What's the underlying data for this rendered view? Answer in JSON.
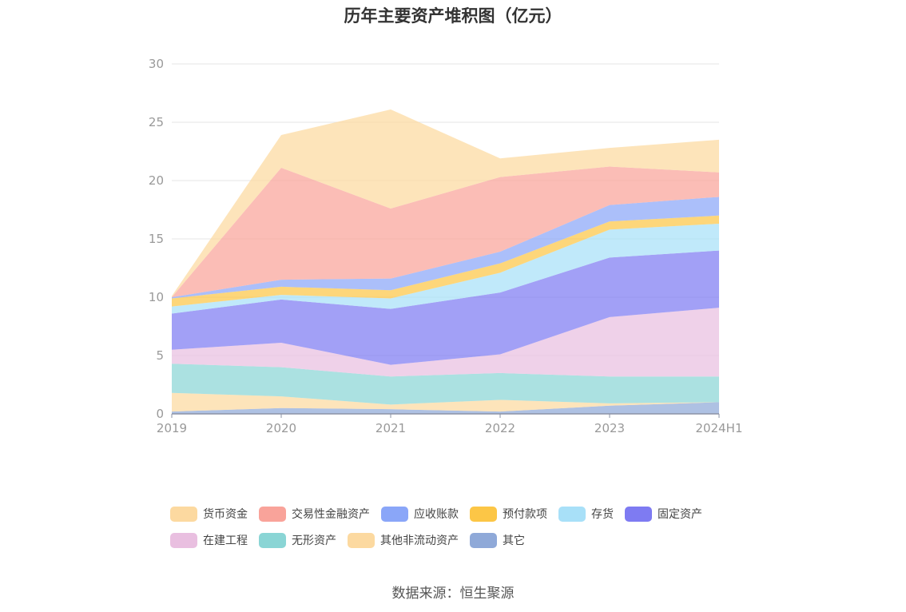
{
  "chart_data": {
    "type": "area",
    "stacked": true,
    "title": "历年主要资产堆积图（亿元）",
    "categories": [
      "2019",
      "2020",
      "2021",
      "2022",
      "2023",
      "2024H1"
    ],
    "ylim": [
      0,
      30
    ],
    "yticks": [
      0,
      5,
      10,
      15,
      20,
      25,
      30
    ],
    "grid": true,
    "legend_position": "bottom",
    "series": [
      {
        "name": "其它",
        "color": "#8fa9d8",
        "values": [
          0.2,
          0.5,
          0.4,
          0.2,
          0.7,
          1.0
        ]
      },
      {
        "name": "其他非流动资产",
        "color": "#fcd9a0",
        "values": [
          1.6,
          1.0,
          0.4,
          1.0,
          0.2,
          0.0
        ]
      },
      {
        "name": "无形资产",
        "color": "#8ad5d5",
        "values": [
          2.5,
          2.5,
          2.4,
          2.3,
          2.3,
          2.2
        ]
      },
      {
        "name": "在建工程",
        "color": "#e9bfe0",
        "values": [
          1.2,
          2.1,
          1.0,
          1.6,
          5.1,
          5.9
        ]
      },
      {
        "name": "固定资产",
        "color": "#7e7bf2",
        "values": [
          3.1,
          3.7,
          4.8,
          5.3,
          5.1,
          4.9
        ]
      },
      {
        "name": "存货",
        "color": "#a8e0f8",
        "values": [
          0.6,
          0.4,
          0.9,
          1.7,
          2.4,
          2.3
        ]
      },
      {
        "name": "预付款项",
        "color": "#fcc646",
        "values": [
          0.7,
          0.7,
          0.7,
          0.8,
          0.7,
          0.7
        ]
      },
      {
        "name": "应收账款",
        "color": "#8aa6f8",
        "values": [
          0.1,
          0.6,
          1.0,
          1.0,
          1.4,
          1.6
        ]
      },
      {
        "name": "交易性金融资产",
        "color": "#f9a39a",
        "values": [
          0.0,
          9.6,
          6.0,
          6.4,
          3.3,
          2.1
        ]
      },
      {
        "name": "货币资金",
        "color": "#fcd9a0",
        "values": [
          0.1,
          2.8,
          8.5,
          1.6,
          1.6,
          2.8
        ]
      }
    ],
    "legend": [
      "货币资金",
      "交易性金融资产",
      "应收账款",
      "预付款项",
      "存货",
      "固定资产",
      "在建工程",
      "无形资产",
      "其他非流动资产",
      "其它"
    ]
  },
  "source": "数据来源：恒生聚源"
}
